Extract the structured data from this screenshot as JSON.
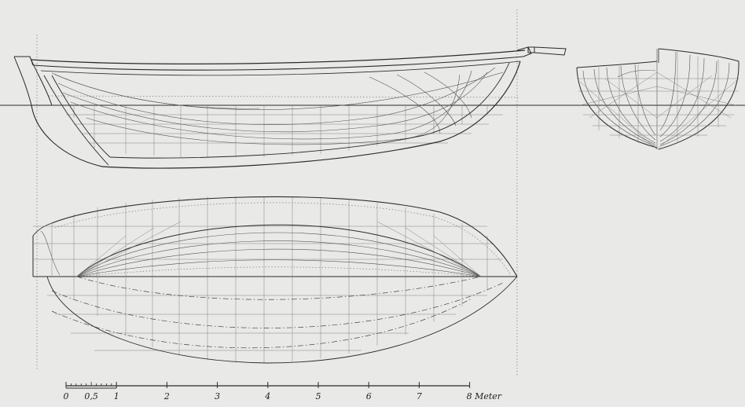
{
  "scale_bar": {
    "labels": [
      "0",
      "0,5",
      "1",
      "2",
      "3",
      "4",
      "5",
      "6",
      "7",
      "8 Meter"
    ]
  }
}
